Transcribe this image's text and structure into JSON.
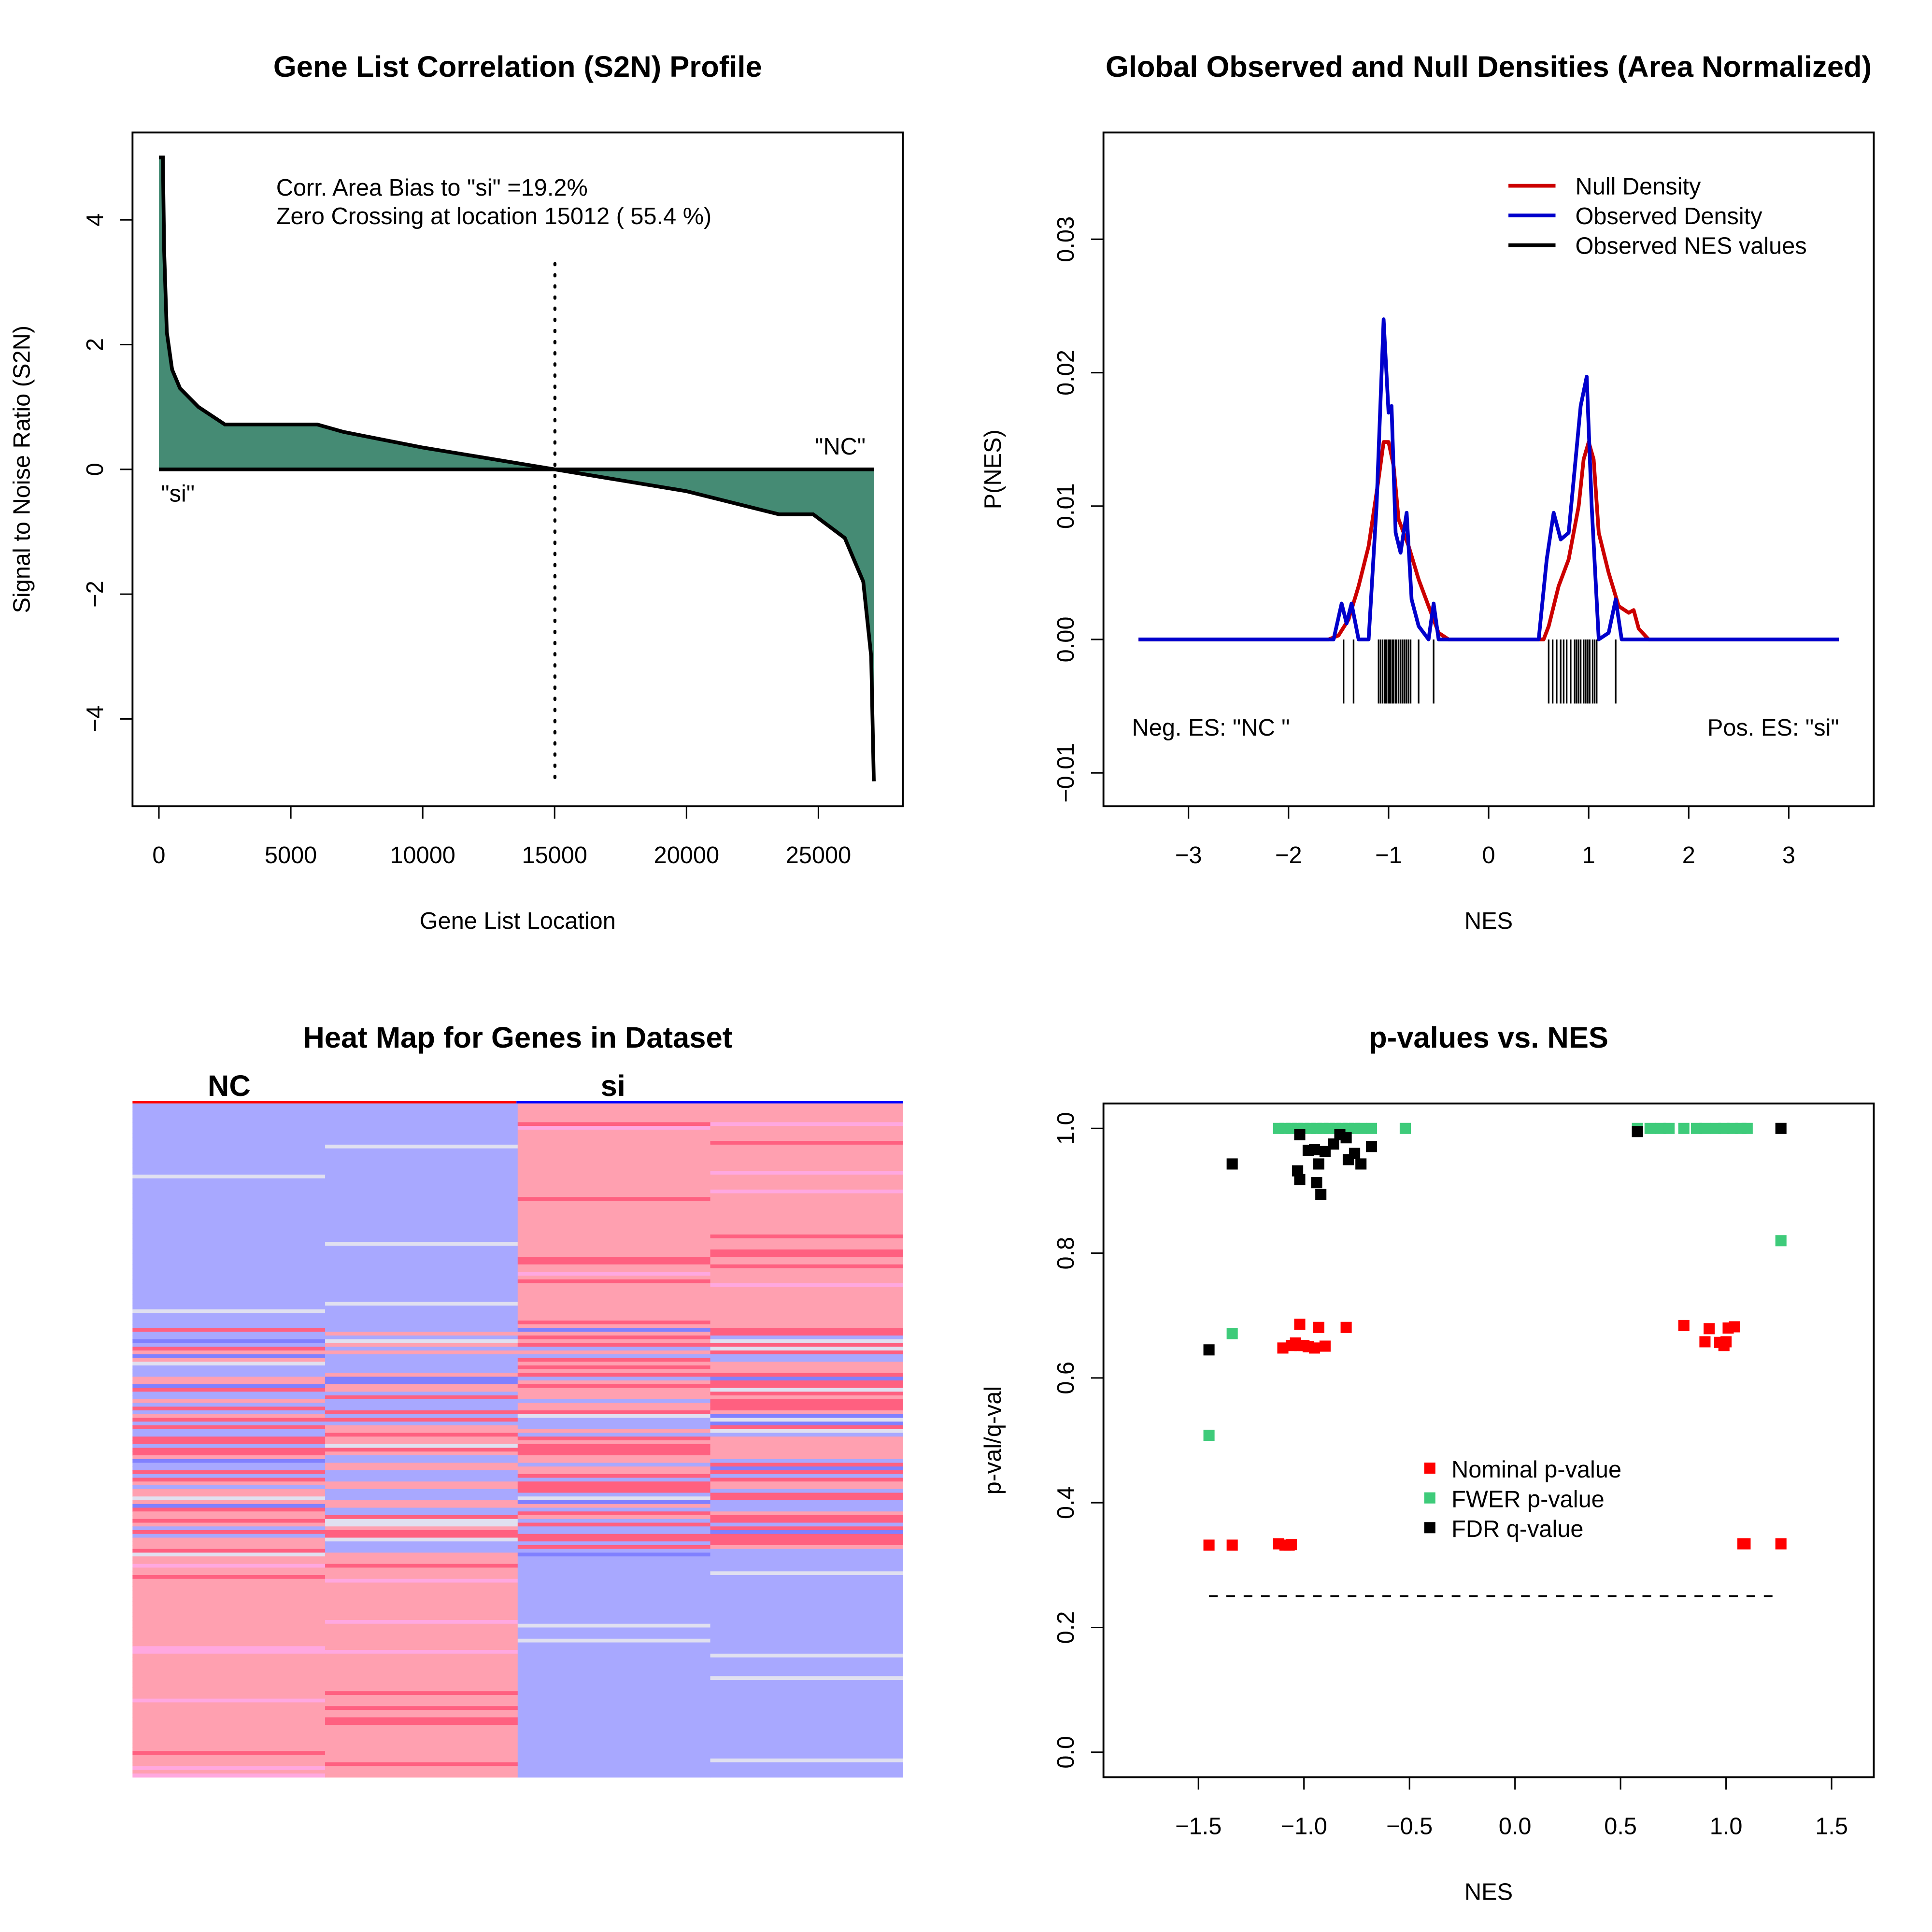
{
  "chart_data": [
    {
      "type": "area",
      "title": "Gene List Correlation (S2N) Profile",
      "xlabel": "Gene List Location",
      "ylabel": "Signal to Noise Ratio (S2N)",
      "xticks": [
        "0",
        "5000",
        "10000",
        "15000",
        "20000",
        "25000"
      ],
      "xtick_values": [
        0,
        5000,
        10000,
        15000,
        20000,
        25000
      ],
      "yticks": [
        "−4",
        "−2",
        "0",
        "2",
        "4"
      ],
      "ytick_values": [
        -4,
        -2,
        0,
        2,
        4
      ],
      "xlim": [
        -1000,
        28200
      ],
      "ylim": [
        -5.4,
        5.4
      ],
      "annotations": [
        "Corr. Area Bias to \"si\" =19.2%",
        "Zero Crossing at location  15012  ( 55.4  %)"
      ],
      "left_label": "\"si\"",
      "right_label": "\"NC\"",
      "zero_crossing": 15012,
      "fill_color": "#458b74",
      "x": [
        0,
        150,
        200,
        300,
        500,
        800,
        1500,
        2500,
        6000,
        7000,
        10000,
        15012,
        20000,
        23500,
        24800,
        26000,
        26700,
        27000,
        27100
      ],
      "y": [
        5,
        5,
        3.5,
        2.2,
        1.6,
        1.3,
        1.0,
        0.72,
        0.72,
        0.6,
        0.35,
        0,
        -0.35,
        -0.72,
        -0.72,
        -1.1,
        -1.8,
        -3,
        -5
      ]
    },
    {
      "type": "line",
      "title": "Global Observed and Null Densities (Area Normalized)",
      "xlabel": "NES",
      "ylabel": "P(NES)",
      "xticks": [
        "−3",
        "−2",
        "−1",
        "0",
        "1",
        "2",
        "3"
      ],
      "xtick_values": [
        -3,
        -2,
        -1,
        0,
        1,
        2,
        3
      ],
      "yticks": [
        "−0.01",
        "0.00",
        "0.01",
        "0.02",
        "0.03"
      ],
      "ytick_values": [
        -0.01,
        0,
        0.01,
        0.02,
        0.03
      ],
      "xlim": [
        -3.85,
        3.85
      ],
      "ylim": [
        -0.0125,
        0.038
      ],
      "legend": {
        "placement": "top-right",
        "entries": [
          "Null Density",
          "Observed Density",
          "Observed NES values"
        ]
      },
      "neg_label": "Neg. ES: \"NC \"",
      "pos_label": "Pos. ES: \"si\"",
      "series": [
        {
          "name": "Null Density",
          "color": "#cc0000",
          "x": [
            -3.5,
            -1.6,
            -1.5,
            -1.4,
            -1.3,
            -1.2,
            -1.1,
            -1.05,
            -1.0,
            -0.95,
            -0.9,
            -0.8,
            -0.7,
            -0.6,
            -0.5,
            -0.4,
            0.55,
            0.6,
            0.7,
            0.8,
            0.9,
            0.95,
            1.0,
            1.05,
            1.1,
            1.2,
            1.3,
            1.4,
            1.45,
            1.5,
            1.6,
            3.5
          ],
          "y": [
            0,
            0,
            0.0003,
            0.0015,
            0.004,
            0.007,
            0.012,
            0.0148,
            0.0148,
            0.013,
            0.009,
            0.007,
            0.0045,
            0.0025,
            0.0005,
            0,
            0,
            0.001,
            0.004,
            0.006,
            0.01,
            0.0135,
            0.0148,
            0.0135,
            0.008,
            0.005,
            0.0025,
            0.002,
            0.0022,
            0.0008,
            0,
            0
          ]
        },
        {
          "name": "Observed Density",
          "color": "#0000cc",
          "x": [
            -3.5,
            -1.55,
            -1.47,
            -1.42,
            -1.37,
            -1.3,
            -1.2,
            -1.12,
            -1.05,
            -1.0,
            -0.97,
            -0.93,
            -0.88,
            -0.82,
            -0.77,
            -0.7,
            -0.6,
            -0.55,
            -0.5,
            -0.4,
            0.5,
            0.58,
            0.65,
            0.72,
            0.8,
            0.85,
            0.92,
            0.98,
            1.03,
            1.1,
            1.2,
            1.27,
            1.33,
            1.4,
            3.5
          ],
          "y": [
            0,
            0,
            0.0027,
            0.0012,
            0.0027,
            0,
            0,
            0.01,
            0.024,
            0.017,
            0.0175,
            0.008,
            0.0065,
            0.0095,
            0.003,
            0.001,
            0,
            0.0027,
            0,
            0,
            0,
            0.006,
            0.0095,
            0.0075,
            0.008,
            0.012,
            0.0175,
            0.0197,
            0.01,
            0,
            0.0005,
            0.003,
            0,
            0,
            0
          ]
        }
      ],
      "rug": [
        -1.45,
        -1.35,
        -1.1,
        -1.08,
        -1.06,
        -1.04,
        -1.03,
        -1.02,
        -1.0,
        -0.99,
        -0.98,
        -0.96,
        -0.95,
        -0.93,
        -0.92,
        -0.9,
        -0.88,
        -0.86,
        -0.84,
        -0.82,
        -0.8,
        -0.78,
        -0.7,
        -0.55,
        0.6,
        0.64,
        0.68,
        0.72,
        0.75,
        0.78,
        0.82,
        0.86,
        0.88,
        0.9,
        0.92,
        0.95,
        0.97,
        0.99,
        1.01,
        1.04,
        1.06,
        1.08,
        1.27
      ]
    },
    {
      "type": "heatmap",
      "title": "Heat Map for Genes in Dataset",
      "groups": [
        {
          "label": "NC",
          "color": "#ff0000"
        },
        {
          "label": "si",
          "color": "#0000ff"
        }
      ],
      "columns": 4,
      "colors": {
        "high": "#ffa0b0",
        "low": "#a8a8ff",
        "strong_high": "#ff6080",
        "strong_low": "#8080ff",
        "neutral": "#e0e0f0",
        "pinkish": "#ffa8e0"
      },
      "blocks": [
        {
          "from": 0,
          "to": 0.33,
          "pattern": [
            "low",
            "low",
            "high",
            "high"
          ]
        },
        {
          "from": 0.33,
          "to": 0.67,
          "pattern": [
            "mixed",
            "mixed",
            "mixed",
            "mixed"
          ]
        },
        {
          "from": 0.67,
          "to": 1,
          "pattern": [
            "high",
            "high",
            "low",
            "low"
          ]
        }
      ]
    },
    {
      "type": "scatter",
      "title": "p-values vs. NES",
      "xlabel": "NES",
      "ylabel": "p-val/q-val",
      "xticks": [
        "−1.5",
        "−1.0",
        "−0.5",
        "0.0",
        "0.5",
        "1.0",
        "1.5"
      ],
      "xtick_values": [
        -1.5,
        -1,
        -0.5,
        0,
        0.5,
        1,
        1.5
      ],
      "yticks": [
        "0.0",
        "0.2",
        "0.4",
        "0.6",
        "0.8",
        "1.0"
      ],
      "ytick_values": [
        0,
        0.2,
        0.4,
        0.6,
        0.8,
        1.0
      ],
      "xlim": [
        -1.95,
        1.7
      ],
      "ylim": [
        -0.04,
        1.04
      ],
      "threshold": {
        "y": 0.25,
        "x": [
          -1.45,
          1.26
        ]
      },
      "legend": {
        "placement": "center",
        "entries": [
          "Nominal p-value",
          "FWER p-value",
          "FDR q-value"
        ]
      },
      "series": [
        {
          "name": "Nominal p-value",
          "color": "#ff0000",
          "x": [
            -1.45,
            -1.34,
            -1.12,
            -1.09,
            -1.07,
            -1.06,
            1.08,
            1.09,
            1.26,
            -1.1,
            -1.06,
            -1.04,
            -1.02,
            -1.0,
            -0.98,
            -0.95,
            -0.9,
            -1.02,
            -0.93,
            -0.8,
            0.8,
            0.92,
            1.01,
            1.04,
            0.9,
            0.97,
            0.99,
            1.0
          ],
          "y": [
            0.332,
            0.332,
            0.334,
            0.332,
            0.332,
            0.333,
            0.334,
            0.334,
            0.334,
            0.648,
            0.652,
            0.656,
            0.652,
            0.652,
            0.65,
            0.648,
            0.651,
            0.686,
            0.681,
            0.681,
            0.684,
            0.679,
            0.68,
            0.682,
            0.658,
            0.657,
            0.652,
            0.658
          ]
        },
        {
          "name": "FWER p-value",
          "color": "#3ecb7a",
          "x": [
            -1.12,
            -1.09,
            -1.06,
            -1.03,
            -1.0,
            -0.97,
            -0.94,
            -0.91,
            -0.88,
            -0.85,
            -0.82,
            -0.79,
            -0.76,
            -0.73,
            -0.68,
            -0.52,
            0.58,
            0.64,
            0.69,
            0.73,
            0.8,
            0.86,
            0.9,
            0.95,
            0.99,
            1.03,
            1.07,
            1.1,
            -1.45,
            -1.34,
            1.26
          ],
          "y": [
            1,
            1,
            1,
            1,
            1,
            1,
            1,
            1,
            1,
            1,
            1,
            1,
            1,
            1,
            1,
            1,
            1,
            1,
            1,
            1,
            1,
            1,
            1,
            1,
            1,
            1,
            1,
            1,
            0.508,
            0.671,
            0.82
          ]
        },
        {
          "name": "FDR q-value",
          "color": "#000000",
          "x": [
            -1.45,
            -1.34,
            -1.02,
            -0.98,
            -0.95,
            -0.9,
            -0.86,
            -0.83,
            -0.8,
            -0.79,
            -0.76,
            -0.73,
            -0.68,
            -0.93,
            -1.03,
            -1.02,
            -0.94,
            -0.92,
            0.58,
            1.26
          ],
          "y": [
            0.645,
            0.943,
            0.99,
            0.965,
            0.966,
            0.963,
            0.975,
            0.99,
            0.985,
            0.95,
            0.96,
            0.943,
            0.971,
            0.943,
            0.932,
            0.918,
            0.913,
            0.894,
            0.995,
            1.0
          ]
        }
      ]
    }
  ]
}
